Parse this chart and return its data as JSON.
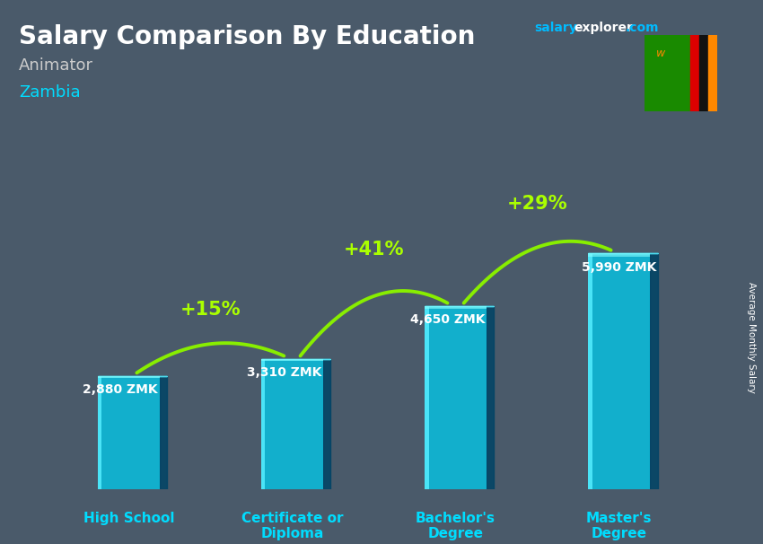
{
  "title": "Salary Comparison By Education",
  "subtitle_job": "Animator",
  "subtitle_country": "Zambia",
  "ylabel_rotated": "Average Monthly Salary",
  "categories": [
    "High School",
    "Certificate or\nDiploma",
    "Bachelor's\nDegree",
    "Master's\nDegree"
  ],
  "values": [
    2880,
    3310,
    4650,
    5990
  ],
  "value_labels": [
    "2,880 ZMK",
    "3,310 ZMK",
    "4,650 ZMK",
    "5,990 ZMK"
  ],
  "pct_labels": [
    "+15%",
    "+41%",
    "+29%"
  ],
  "bar_color_main": "#00ccee",
  "bar_color_dark": "#0088aa",
  "bar_color_side": "#004466",
  "bar_alpha": 0.75,
  "pct_color": "#aaff00",
  "arrow_color": "#88ee00",
  "label_color": "#00ddff",
  "value_color": "#ffffff",
  "title_color": "#ffffff",
  "job_color": "#cccccc",
  "country_color": "#00ddff",
  "brand_salary_color": "#00bbff",
  "brand_explorer_color": "#ffffff",
  "brand_com_color": "#00bbff",
  "bg_color": "#4a5a6a",
  "ylim_max": 8000,
  "bar_bottom": 0,
  "figsize": [
    8.5,
    6.06
  ],
  "dpi": 100
}
